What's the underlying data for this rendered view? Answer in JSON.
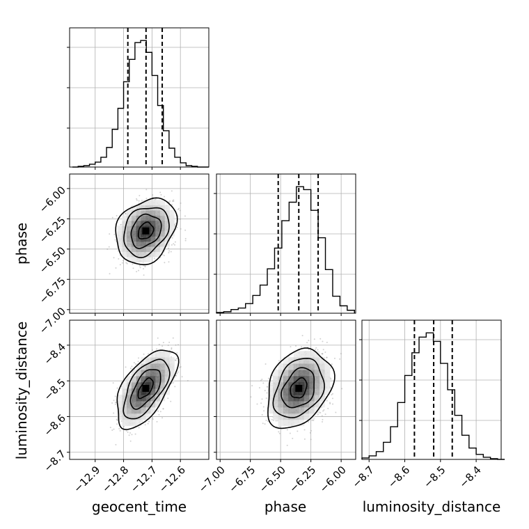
{
  "chart_data": {
    "type": "corner",
    "parameters": [
      {
        "name": "geocent_time",
        "range": [
          -12.99,
          -12.5
        ],
        "ticks": [
          -12.9,
          -12.8,
          -12.7,
          -12.6
        ],
        "tick_labels": [
          "−12.9",
          "−12.8",
          "−12.7",
          "−12.6"
        ],
        "quantiles": [
          -12.785,
          -12.721,
          -12.664
        ],
        "median": -12.721
      },
      {
        "name": "phase",
        "range": [
          -7.03,
          -5.88
        ],
        "ticks": [
          -7.0,
          -6.75,
          -6.5,
          -6.25,
          -6.0
        ],
        "tick_labels": [
          "−7.00",
          "−6.75",
          "−6.50",
          "−6.25",
          "−6.00"
        ],
        "quantiles": [
          -6.52,
          -6.35,
          -6.19
        ],
        "median": -6.35
      },
      {
        "name": "luminosity_distance",
        "range": [
          -8.72,
          -8.33
        ],
        "ticks": [
          -8.7,
          -8.6,
          -8.5,
          -8.4
        ],
        "tick_labels": [
          "−8.7",
          "−8.6",
          "−8.5",
          "−8.4"
        ],
        "quantiles": [
          -8.573,
          -8.519,
          -8.467
        ],
        "median": -8.519
      }
    ],
    "histograms": [
      {
        "parameter": "geocent_time",
        "bins": [
          -12.98,
          -12.96,
          -12.94,
          -12.92,
          -12.9,
          -12.88,
          -12.86,
          -12.84,
          -12.82,
          -12.8,
          -12.78,
          -12.76,
          -12.74,
          -12.72,
          -12.7,
          -12.68,
          -12.66,
          -12.64,
          -12.62,
          -12.6,
          -12.58,
          -12.56,
          -12.54,
          -12.52,
          -12.5
        ],
        "counts": [
          0,
          1,
          2,
          4,
          7,
          14,
          28,
          54,
          84,
          122,
          154,
          178,
          181,
          164,
          131,
          88,
          52,
          27,
          14,
          6,
          2,
          1,
          0,
          0
        ]
      },
      {
        "parameter": "phase",
        "bins": [
          -7.03,
          -6.97,
          -6.91,
          -6.85,
          -6.79,
          -6.73,
          -6.67,
          -6.61,
          -6.55,
          -6.49,
          -6.43,
          -6.37,
          -6.31,
          -6.25,
          -6.19,
          -6.13,
          -6.07,
          -6.01,
          -5.95,
          -5.89
        ],
        "counts": [
          1,
          2,
          5,
          7,
          13,
          24,
          38,
          60,
          88,
          125,
          150,
          171,
          167,
          139,
          102,
          59,
          23,
          10,
          4
        ]
      },
      {
        "parameter": "luminosity_distance",
        "bins": [
          -8.72,
          -8.7,
          -8.68,
          -8.66,
          -8.64,
          -8.62,
          -8.6,
          -8.58,
          -8.56,
          -8.54,
          -8.52,
          -8.5,
          -8.48,
          -8.46,
          -8.44,
          -8.42,
          -8.4,
          -8.38,
          -8.36,
          -8.34,
          -8.32
        ],
        "counts": [
          2,
          5,
          11,
          24,
          46,
          80,
          118,
          150,
          172,
          178,
          166,
          135,
          98,
          62,
          34,
          16,
          7,
          3,
          1,
          0
        ]
      }
    ],
    "pairs": [
      {
        "x": "geocent_time",
        "y": "phase",
        "mean": [
          -12.722,
          -6.35
        ],
        "std": [
          0.045,
          0.115
        ],
        "correlation": 0.25
      },
      {
        "x": "geocent_time",
        "y": "luminosity_distance",
        "mean": [
          -12.722,
          -8.521
        ],
        "std": [
          0.045,
          0.047
        ],
        "correlation": 0.6
      },
      {
        "x": "phase",
        "y": "luminosity_distance",
        "mean": [
          -6.35,
          -8.521
        ],
        "std": [
          0.115,
          0.047
        ],
        "correlation": 0.3
      }
    ],
    "contour_levels_sigma": [
      0.5,
      1.0,
      1.5,
      2.0
    ],
    "grid": true,
    "xlabels": [
      "geocent_time",
      "phase",
      "luminosity_distance"
    ],
    "ylabels": [
      "",
      "phase",
      "luminosity_distance"
    ]
  }
}
